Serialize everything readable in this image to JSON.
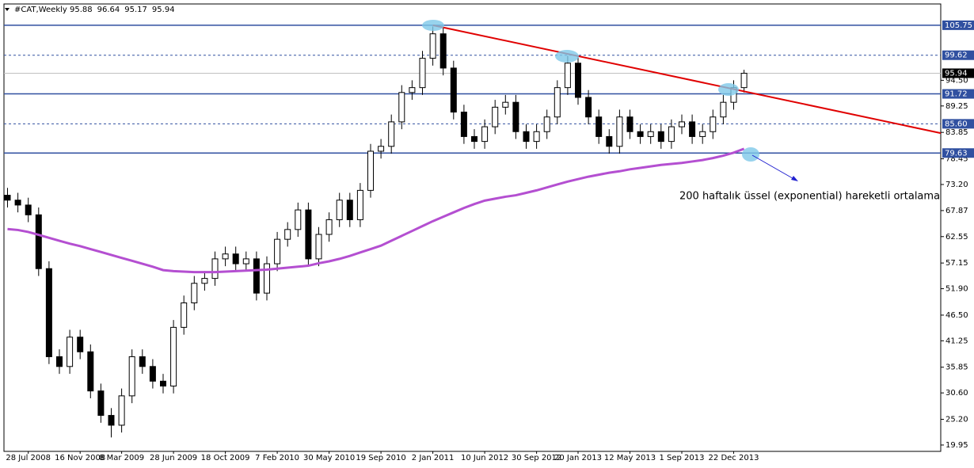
{
  "chart_data": {
    "type": "candlestick",
    "title": "#CAT,Weekly",
    "header_values": [
      95.88,
      96.64,
      95.17,
      95.94
    ],
    "categories": [
      null,
      null,
      "28 Jul 2008",
      null,
      null,
      null,
      null,
      "16 Nov 2008",
      null,
      null,
      null,
      "8 Mar 2009",
      null,
      null,
      null,
      null,
      "28 Jun 2009",
      null,
      null,
      null,
      null,
      "18 Oct 2009",
      null,
      null,
      null,
      null,
      "7 Feb 2010",
      null,
      null,
      null,
      null,
      "30 May 2010",
      null,
      null,
      null,
      null,
      "19 Sep 2010",
      null,
      null,
      null,
      null,
      "2 Jan 2011",
      null,
      null,
      null,
      null,
      "10 Jun 2012",
      null,
      null,
      null,
      null,
      "30 Sep 2012",
      null,
      null,
      null,
      "20 Jan 2013",
      null,
      null,
      null,
      null,
      "12 May 2013",
      null,
      null,
      null,
      null,
      "1 Sep 2013",
      null,
      null,
      null,
      null,
      "22 Dec 2013",
      null
    ],
    "candles": {
      "open": [
        71,
        70,
        69,
        67,
        56,
        38,
        36,
        42,
        39,
        31,
        26,
        24,
        30,
        38,
        36,
        33,
        32,
        44,
        49,
        53,
        54,
        58,
        59,
        57,
        58,
        51,
        57,
        62,
        64,
        68,
        58,
        63,
        66,
        70,
        66,
        72,
        80,
        81,
        86,
        92,
        93,
        99,
        104,
        97,
        88,
        83,
        82,
        85,
        89,
        90,
        84,
        82,
        84,
        87,
        93,
        98,
        91,
        87,
        83,
        81,
        87,
        84,
        83,
        84,
        82,
        85,
        86,
        83,
        84,
        87,
        90,
        93
      ],
      "high": [
        72.5,
        71.5,
        70.5,
        68.5,
        57.5,
        39.5,
        43.5,
        43.5,
        40.5,
        32.5,
        27.5,
        31.5,
        39.5,
        39.5,
        37.5,
        34.5,
        45.5,
        50.5,
        54.5,
        55.5,
        59.5,
        60.5,
        60.5,
        59.5,
        59.5,
        58.5,
        63.5,
        65.5,
        69.5,
        69.5,
        64.5,
        67.5,
        71.5,
        71.5,
        73.5,
        81.5,
        82.5,
        87.5,
        93.5,
        94.5,
        100.5,
        105.5,
        105.5,
        98.5,
        89.5,
        84.5,
        86.5,
        90.5,
        91.5,
        91.5,
        85.5,
        85.5,
        88.5,
        94.5,
        99.5,
        99.5,
        92.5,
        88.5,
        84.5,
        88.5,
        88.5,
        85.5,
        85.5,
        85.5,
        86.5,
        87.5,
        87.5,
        85.5,
        88.5,
        91.5,
        94.5,
        96.64
      ],
      "low": [
        68.5,
        67.5,
        65.5,
        54.5,
        36.5,
        34.5,
        34.5,
        37.5,
        29.5,
        24.5,
        21.5,
        22.5,
        28.5,
        34.5,
        31.5,
        30.5,
        30.5,
        42.5,
        47.5,
        51.5,
        52.5,
        56.5,
        55.5,
        55.5,
        49.5,
        49.5,
        55.5,
        60.5,
        62.5,
        56.5,
        56.5,
        61.5,
        64.5,
        64.5,
        64.5,
        70.5,
        78.5,
        79.5,
        84.5,
        90.5,
        91.5,
        97.5,
        95.5,
        86.5,
        81.5,
        80.5,
        80.5,
        83.5,
        87.5,
        82.5,
        80.5,
        80.5,
        82.5,
        85.5,
        91.5,
        89.5,
        85.5,
        81.5,
        79.5,
        79.5,
        82.5,
        81.5,
        81.5,
        80.5,
        80.5,
        83.5,
        81.5,
        81.5,
        82.5,
        85.5,
        88.5,
        92
      ],
      "close": [
        70,
        69,
        67,
        56,
        38,
        36,
        42,
        39,
        31,
        26,
        24,
        30,
        38,
        36,
        33,
        32,
        44,
        49,
        53,
        54,
        58,
        59,
        57,
        58,
        51,
        57,
        62,
        64,
        68,
        58,
        63,
        66,
        70,
        66,
        72,
        80,
        81,
        86,
        92,
        93,
        99,
        104,
        97,
        88,
        83,
        82,
        85,
        89,
        90,
        84,
        82,
        84,
        87,
        93,
        98,
        91,
        87,
        83,
        81,
        87,
        84,
        83,
        84,
        82,
        85,
        86,
        83,
        84,
        87,
        90,
        93,
        95.94
      ]
    },
    "moving_average": {
      "color": "#b44fd1",
      "values": [
        64.1,
        63.9,
        63.5,
        62.9,
        62.3,
        61.7,
        61.1,
        60.6,
        60.0,
        59.4,
        58.8,
        58.2,
        57.6,
        57.0,
        56.4,
        55.7,
        55.5,
        55.4,
        55.3,
        55.3,
        55.3,
        55.4,
        55.5,
        55.6,
        55.7,
        55.8,
        56.0,
        56.2,
        56.4,
        56.6,
        57.1,
        57.5,
        58.0,
        58.6,
        59.3,
        60.0,
        60.7,
        61.7,
        62.7,
        63.7,
        64.7,
        65.7,
        66.6,
        67.5,
        68.4,
        69.2,
        69.9,
        70.3,
        70.7,
        71.0,
        71.5,
        72.0,
        72.6,
        73.2,
        73.8,
        74.3,
        74.8,
        75.2,
        75.6,
        75.9,
        76.3,
        76.6,
        76.9,
        77.2,
        77.4,
        77.6,
        77.9,
        78.2,
        78.6,
        79.1,
        79.7,
        80.5
      ]
    },
    "trend_line": {
      "color": "#e00000",
      "end": 83.7
    },
    "levels": [
      {
        "value": 105.75,
        "style": "solid"
      },
      {
        "value": 99.62,
        "style": "dashed"
      },
      {
        "value": 91.72,
        "style": "solid"
      },
      {
        "value": 85.6,
        "label": "85.60",
        "style": "dashed"
      },
      {
        "value": 79.63,
        "style": "solid"
      }
    ],
    "last_price": 95.94,
    "ylim": [
      18.65,
      110.1
    ],
    "yticks": [
      {
        "value": 94.5,
        "label": "94.50"
      },
      89.25,
      83.85,
      78.45,
      {
        "value": 73.2,
        "label": "73.20"
      },
      67.87,
      62.55,
      57.15,
      {
        "value": 51.9,
        "label": "51.90"
      },
      {
        "value": 46.5,
        "label": "46.50"
      },
      41.25,
      35.85,
      {
        "value": 30.6,
        "label": "30.60"
      },
      {
        "value": 25.2,
        "label": "25.20"
      },
      19.95
    ],
    "annotation": "200 haftalık üssel (exponential) hareketli ortalama"
  }
}
